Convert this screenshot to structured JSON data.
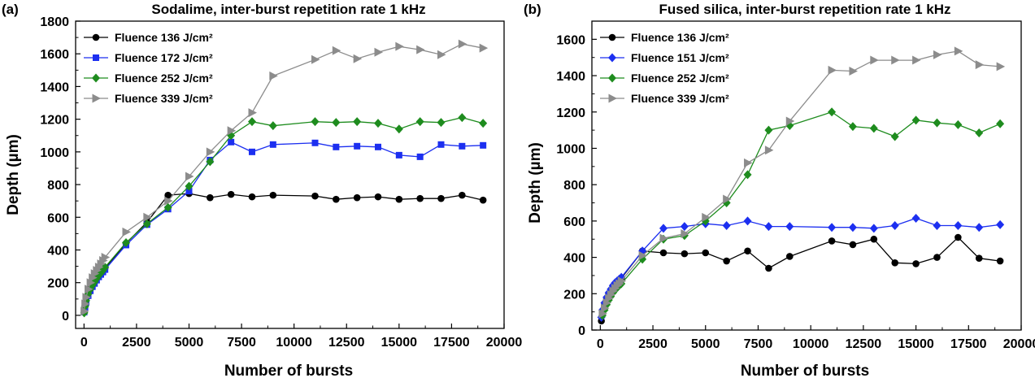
{
  "chart_data": [
    {
      "panel": "(a)",
      "type": "line",
      "title": "Sodalime, inter-burst repetition rate 1 kHz",
      "xlabel": "Number of bursts",
      "ylabel": "Depth (µm)",
      "xlim": [
        -400,
        20000
      ],
      "ylim": [
        -80,
        1800
      ],
      "xticks": [
        0,
        2500,
        5000,
        7500,
        10000,
        12500,
        15000,
        17500,
        20000
      ],
      "xtick_labels": [
        "0",
        "2500",
        "5000",
        "7500",
        "10000",
        "12500",
        "15000",
        "17500",
        "20000"
      ],
      "yticks": [
        0,
        200,
        400,
        600,
        800,
        1000,
        1200,
        1400,
        1600,
        1800
      ],
      "ytick_labels": [
        "0",
        "200",
        "400",
        "600",
        "800",
        "1000",
        "1200",
        "1400",
        "1600",
        "1800"
      ],
      "legend_position": "top-left",
      "series": [
        {
          "name": "Fluence 136 J/cm²",
          "color": "#000000",
          "marker": "circle",
          "x": [
            10,
            50,
            100,
            200,
            300,
            400,
            500,
            600,
            700,
            800,
            900,
            1000,
            2000,
            3000,
            4000,
            5000,
            6000,
            7000,
            8000,
            9000,
            11000,
            12000,
            13000,
            14000,
            15000,
            16000,
            17000,
            18000,
            19000
          ],
          "y": [
            20,
            60,
            100,
            140,
            170,
            190,
            210,
            225,
            240,
            255,
            270,
            290,
            440,
            570,
            735,
            745,
            720,
            740,
            725,
            735,
            730,
            710,
            720,
            725,
            710,
            715,
            715,
            735,
            705
          ]
        },
        {
          "name": "Fluence 172 J/cm²",
          "color": "#1c2ff0",
          "marker": "square",
          "x": [
            10,
            50,
            100,
            200,
            300,
            400,
            500,
            600,
            700,
            800,
            900,
            1000,
            2000,
            3000,
            4000,
            5000,
            6000,
            7000,
            8000,
            9000,
            11000,
            12000,
            13000,
            14000,
            15000,
            16000,
            17000,
            18000,
            19000
          ],
          "y": [
            20,
            50,
            80,
            120,
            150,
            175,
            195,
            215,
            235,
            250,
            265,
            280,
            430,
            555,
            650,
            760,
            950,
            1060,
            1000,
            1045,
            1055,
            1030,
            1035,
            1030,
            980,
            970,
            1045,
            1035,
            1040
          ]
        },
        {
          "name": "Fluence 252 J/cm²",
          "color": "#1e8c1e",
          "marker": "diamond",
          "x": [
            10,
            50,
            100,
            200,
            300,
            400,
            500,
            600,
            700,
            800,
            900,
            1000,
            2000,
            3000,
            4000,
            5000,
            6000,
            7000,
            8000,
            9000,
            11000,
            12000,
            13000,
            14000,
            15000,
            16000,
            17000,
            18000,
            19000
          ],
          "y": [
            15,
            55,
            90,
            130,
            160,
            185,
            205,
            225,
            245,
            260,
            275,
            295,
            445,
            560,
            660,
            790,
            940,
            1100,
            1185,
            1160,
            1185,
            1180,
            1185,
            1175,
            1140,
            1185,
            1180,
            1210,
            1175
          ]
        },
        {
          "name": "Fluence 339 J/cm²",
          "color": "#8c8c8c",
          "marker": "triangle-right",
          "x": [
            10,
            50,
            100,
            200,
            300,
            400,
            500,
            600,
            700,
            800,
            900,
            1000,
            2000,
            3000,
            4000,
            5000,
            6000,
            7000,
            8000,
            9000,
            11000,
            12000,
            13000,
            14000,
            15000,
            16000,
            17000,
            18000,
            19000
          ],
          "y": [
            25,
            70,
            110,
            160,
            200,
            230,
            255,
            275,
            295,
            315,
            335,
            355,
            510,
            600,
            700,
            850,
            1000,
            1130,
            1240,
            1465,
            1565,
            1620,
            1570,
            1610,
            1645,
            1625,
            1595,
            1660,
            1635
          ]
        }
      ]
    },
    {
      "panel": "(b)",
      "type": "line",
      "title": "Fused silica, inter-burst repetition rate 1 kHz",
      "xlabel": "Number of bursts",
      "ylabel": "Depth (µm)",
      "xlim": [
        -400,
        20000
      ],
      "ylim": [
        0,
        1700
      ],
      "xticks": [
        0,
        2500,
        5000,
        7500,
        10000,
        12500,
        15000,
        17500,
        20000
      ],
      "xtick_labels": [
        "0",
        "2500",
        "5000",
        "7500",
        "10000",
        "12500",
        "15000",
        "17500",
        "20000"
      ],
      "yticks": [
        0,
        200,
        400,
        600,
        800,
        1000,
        1200,
        1400,
        1600
      ],
      "ytick_labels": [
        "0",
        "200",
        "400",
        "600",
        "800",
        "1000",
        "1200",
        "1400",
        "1600"
      ],
      "legend_position": "top-left",
      "series": [
        {
          "name": "Fluence 136 J/cm²",
          "color": "#000000",
          "marker": "circle",
          "x": [
            50,
            100,
            200,
            300,
            400,
            500,
            600,
            700,
            800,
            900,
            1000,
            2000,
            3000,
            4000,
            5000,
            6000,
            7000,
            8000,
            9000,
            11000,
            12000,
            13000,
            14000,
            15000,
            16000,
            17000,
            18000,
            19000
          ],
          "y": [
            50,
            100,
            140,
            170,
            200,
            220,
            240,
            255,
            265,
            275,
            285,
            435,
            425,
            420,
            425,
            380,
            435,
            340,
            405,
            490,
            470,
            500,
            370,
            365,
            400,
            510,
            395,
            380
          ]
        },
        {
          "name": "Fluence 151 J/cm²",
          "color": "#1c2ff0",
          "marker": "diamond",
          "x": [
            50,
            100,
            200,
            300,
            400,
            500,
            600,
            700,
            800,
            900,
            1000,
            2000,
            3000,
            4000,
            5000,
            6000,
            7000,
            8000,
            9000,
            11000,
            12000,
            13000,
            14000,
            15000,
            16000,
            17000,
            18000,
            19000
          ],
          "y": [
            70,
            110,
            150,
            180,
            205,
            225,
            245,
            260,
            270,
            280,
            290,
            435,
            560,
            570,
            585,
            575,
            600,
            570,
            570,
            565,
            565,
            560,
            575,
            615,
            575,
            575,
            565,
            580
          ]
        },
        {
          "name": "Fluence 252 J/cm²",
          "color": "#1e8c1e",
          "marker": "diamond",
          "x": [
            100,
            200,
            300,
            400,
            500,
            600,
            700,
            800,
            900,
            1000,
            2000,
            3000,
            4000,
            5000,
            6000,
            7000,
            8000,
            9000,
            11000,
            12000,
            13000,
            14000,
            15000,
            16000,
            17000,
            18000,
            19000
          ],
          "y": [
            80,
            110,
            140,
            165,
            185,
            205,
            220,
            235,
            245,
            255,
            390,
            500,
            520,
            600,
            700,
            855,
            1100,
            1125,
            1200,
            1120,
            1110,
            1065,
            1155,
            1140,
            1130,
            1085,
            1135
          ]
        },
        {
          "name": "Fluence 339 J/cm²",
          "color": "#8c8c8c",
          "marker": "triangle-right",
          "x": [
            100,
            200,
            300,
            400,
            500,
            600,
            700,
            800,
            900,
            1000,
            2000,
            3000,
            4000,
            5000,
            6000,
            7000,
            8000,
            9000,
            11000,
            12000,
            13000,
            14000,
            15000,
            16000,
            17000,
            18000,
            19000
          ],
          "y": [
            90,
            120,
            150,
            175,
            195,
            215,
            230,
            245,
            255,
            270,
            410,
            505,
            530,
            620,
            720,
            920,
            990,
            1150,
            1430,
            1425,
            1485,
            1485,
            1485,
            1515,
            1535,
            1460,
            1450
          ]
        }
      ]
    }
  ]
}
